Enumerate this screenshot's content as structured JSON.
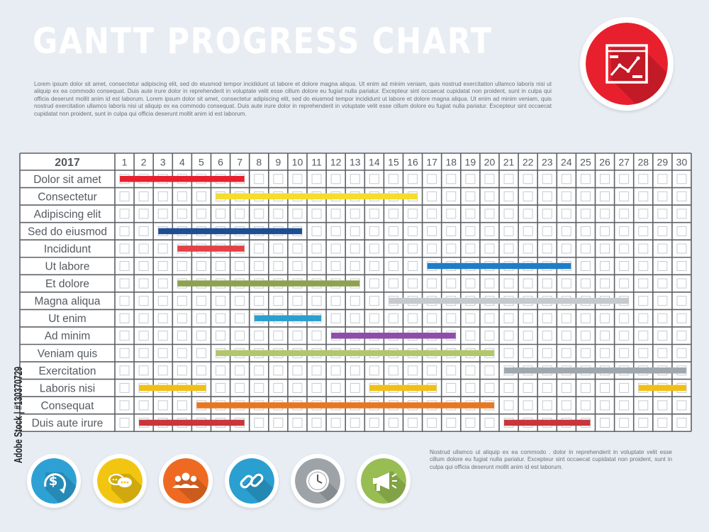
{
  "header": {
    "title": "GANTT PROGRESS CHART",
    "intro": "Lorem ipsum dolor sit amet, consectetur adipiscing elit, sed do eiusmod tempor incididunt ut labore et dolore magna aliqua. Ut enim ad minim veniam, quis nostrud exercitation ullamco laboris nisi ut aliquip ex ea commodo consequat. Duis aute irure dolor in reprehenderit in voluptate velit esse cillum dolore eu fugiat nulla pariatur. Excepteur sint occaecat cupidatat non proident, sunt in culpa qui officia deserunt mollit anim id est laborum. Lorem ipsum dolor sit amet, consectetur adipiscing elit, sed do eiusmod tempor incididunt ut labore et dolore magna aliqua. Ut enim ad minim veniam, quis nostrud exercitation ullamco laboris nisi ut aliquip ex ea commodo consequat. Duis aute irure dolor in reprehenderit in voluptate velit esse cillum dolore eu fugiat nulla pariatur. Excepteur sint occaecat cupidatat non proident, sunt in culpa qui officia deserunt mollit anim id est laborum.",
    "badge_icon": "line-chart-window-icon",
    "badge_color": "#e8202e"
  },
  "footer": {
    "text": "Nostrud  ullamco ut aliquip ex ea commodo .  dolor in reprehenderit in voluptate velit esse cillum dolore eu fugiat nulla pariatur. Excepteur sint occaecat cupidatat non proident, sunt in culpa qui officia deserunt mollit anim id est laborum.",
    "icons": [
      {
        "name": "dollar-cycle-icon",
        "color": "#2ea1d4"
      },
      {
        "name": "chat-bubbles-icon",
        "color": "#f2c511"
      },
      {
        "name": "people-group-icon",
        "color": "#ee6a23"
      },
      {
        "name": "chain-link-icon",
        "color": "#2a9fd0"
      },
      {
        "name": "clock-icon",
        "color": "#9ea3a8"
      },
      {
        "name": "megaphone-icon",
        "color": "#98bd52"
      }
    ]
  },
  "watermark": {
    "text": "Adobe Stock | #130370729"
  },
  "chart_data": {
    "type": "gantt",
    "year_label": "2017",
    "days": [
      1,
      2,
      3,
      4,
      5,
      6,
      7,
      8,
      9,
      10,
      11,
      12,
      13,
      14,
      15,
      16,
      17,
      18,
      19,
      20,
      21,
      22,
      23,
      24,
      25,
      26,
      27,
      28,
      29,
      30
    ],
    "tasks": [
      {
        "label": "Dolor sit amet",
        "segments": [
          {
            "start": 1,
            "end": 7,
            "color": "#e8202e"
          }
        ]
      },
      {
        "label": "Consectetur",
        "segments": [
          {
            "start": 6,
            "end": 16,
            "color": "#f4de2a"
          }
        ]
      },
      {
        "label": "Adipiscing elit",
        "segments": []
      },
      {
        "label": "Sed do eiusmod",
        "segments": [
          {
            "start": 3,
            "end": 10,
            "color": "#1d4e91"
          }
        ]
      },
      {
        "label": "Incididunt",
        "segments": [
          {
            "start": 4,
            "end": 7,
            "color": "#e44045"
          }
        ]
      },
      {
        "label": "Ut labore",
        "segments": [
          {
            "start": 17,
            "end": 24,
            "color": "#1f7dc6"
          }
        ]
      },
      {
        "label": "Et dolore",
        "segments": [
          {
            "start": 4,
            "end": 13,
            "color": "#8ea150"
          }
        ]
      },
      {
        "label": "Magna aliqua",
        "segments": [
          {
            "start": 15,
            "end": 27,
            "color": "#c7cacd"
          }
        ]
      },
      {
        "label": "Ut enim",
        "segments": [
          {
            "start": 8,
            "end": 11,
            "color": "#2a9fd0"
          }
        ]
      },
      {
        "label": "Ad minim",
        "segments": [
          {
            "start": 12,
            "end": 18,
            "color": "#8e4dab"
          }
        ]
      },
      {
        "label": "Veniam quis",
        "segments": [
          {
            "start": 6,
            "end": 20,
            "color": "#b2c66b"
          }
        ]
      },
      {
        "label": "Exercitation",
        "segments": [
          {
            "start": 21,
            "end": 30,
            "color": "#a0a8ae"
          }
        ]
      },
      {
        "label": "Laboris nisi",
        "segments": [
          {
            "start": 2,
            "end": 5,
            "color": "#f0c017"
          },
          {
            "start": 14,
            "end": 17,
            "color": "#f0c017"
          },
          {
            "start": 28,
            "end": 30,
            "color": "#f0c017"
          }
        ]
      },
      {
        "label": "Consequat",
        "segments": [
          {
            "start": 5,
            "end": 20,
            "color": "#e87722"
          }
        ]
      },
      {
        "label": "Duis aute irure",
        "segments": [
          {
            "start": 2,
            "end": 7,
            "color": "#c8353a"
          },
          {
            "start": 21,
            "end": 25,
            "color": "#c8353a"
          }
        ]
      }
    ]
  }
}
